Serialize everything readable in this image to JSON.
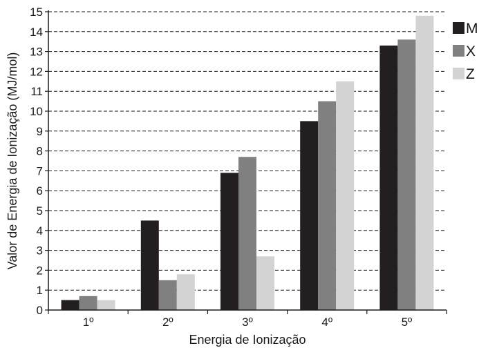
{
  "chart_data": {
    "type": "bar",
    "categories": [
      "1º",
      "2º",
      "3º",
      "4º",
      "5º"
    ],
    "series": [
      {
        "name": "M",
        "color": "#231f20",
        "values": [
          0.5,
          4.5,
          6.9,
          9.5,
          13.3
        ]
      },
      {
        "name": "X",
        "color": "#808080",
        "values": [
          0.7,
          1.5,
          7.7,
          10.5,
          13.6
        ]
      },
      {
        "name": "Z",
        "color": "#d3d3d3",
        "values": [
          0.5,
          1.8,
          2.7,
          11.5,
          14.8
        ]
      }
    ],
    "xlabel": "Energia de Ionização",
    "ylabel": "Valor de Energia de Ionização (MJ/mol)",
    "ylim": [
      0,
      15
    ],
    "yticks": [
      0,
      1,
      2,
      3,
      4,
      5,
      6,
      7,
      8,
      9,
      10,
      11,
      12,
      13,
      14,
      15
    ],
    "grid": true,
    "grid_style": "dashed",
    "legend_position": "right"
  }
}
